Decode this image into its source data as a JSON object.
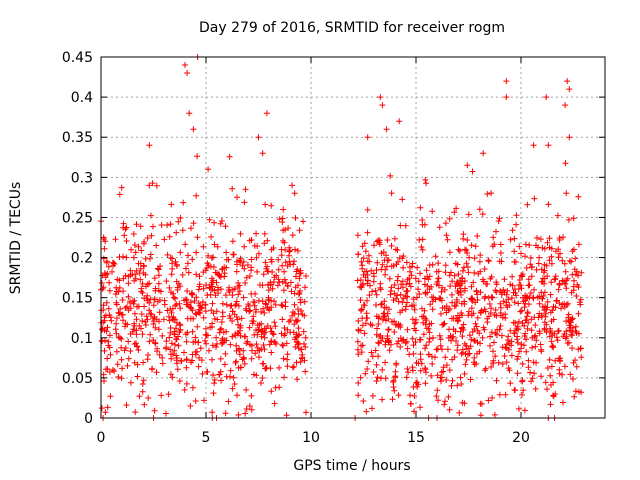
{
  "chart_data": {
    "type": "scatter",
    "title": "Day 279 of 2016, SRMTID for receiver rogm",
    "xlabel": "GPS time / hours",
    "ylabel": "SRMTID / TECUs",
    "xlim": [
      0,
      24
    ],
    "ylim": [
      0,
      0.45
    ],
    "grid": true,
    "marker": "+",
    "series_color": "#ff0000",
    "x_ticks": [
      0,
      5,
      10,
      15,
      20
    ],
    "x_tick_labels": [
      "0",
      "5",
      "10",
      "15",
      "20"
    ],
    "y_ticks": [
      0,
      0.05,
      0.1,
      0.15,
      0.2,
      0.25,
      0.3,
      0.35,
      0.4,
      0.45
    ],
    "y_tick_labels": [
      "0",
      "0.05",
      "0.1",
      "0.15",
      "0.2",
      "0.25",
      "0.3",
      "0.35",
      "0.4",
      "0.45"
    ],
    "segments": [
      {
        "x_start": 0.0,
        "x_end": 9.8,
        "n": 900
      },
      {
        "x_start": 12.2,
        "x_end": 22.9,
        "n": 1000
      }
    ],
    "highlights": [
      {
        "x": 4.0,
        "y": 0.44
      },
      {
        "x": 4.1,
        "y": 0.43
      },
      {
        "x": 4.6,
        "y": 0.45
      },
      {
        "x": 4.2,
        "y": 0.38
      },
      {
        "x": 4.4,
        "y": 0.36
      },
      {
        "x": 7.9,
        "y": 0.38
      },
      {
        "x": 7.7,
        "y": 0.33
      },
      {
        "x": 7.5,
        "y": 0.35
      },
      {
        "x": 13.3,
        "y": 0.4
      },
      {
        "x": 13.4,
        "y": 0.39
      },
      {
        "x": 12.7,
        "y": 0.35
      },
      {
        "x": 13.6,
        "y": 0.36
      },
      {
        "x": 14.2,
        "y": 0.37
      },
      {
        "x": 19.3,
        "y": 0.42
      },
      {
        "x": 19.3,
        "y": 0.4
      },
      {
        "x": 21.2,
        "y": 0.4
      },
      {
        "x": 22.2,
        "y": 0.42
      },
      {
        "x": 22.3,
        "y": 0.41
      },
      {
        "x": 22.1,
        "y": 0.39
      },
      {
        "x": 22.3,
        "y": 0.35
      },
      {
        "x": 20.6,
        "y": 0.34
      },
      {
        "x": 21.3,
        "y": 0.34
      },
      {
        "x": 2.3,
        "y": 0.34
      },
      {
        "x": 2.3,
        "y": 0.29
      },
      {
        "x": 5.1,
        "y": 0.31
      },
      {
        "x": 9.1,
        "y": 0.29
      },
      {
        "x": 18.2,
        "y": 0.33
      }
    ],
    "zero_points_x": [
      0.1,
      2.5,
      5.3,
      5.5,
      12.1,
      15.6,
      16.0,
      21.3,
      21.6
    ]
  }
}
